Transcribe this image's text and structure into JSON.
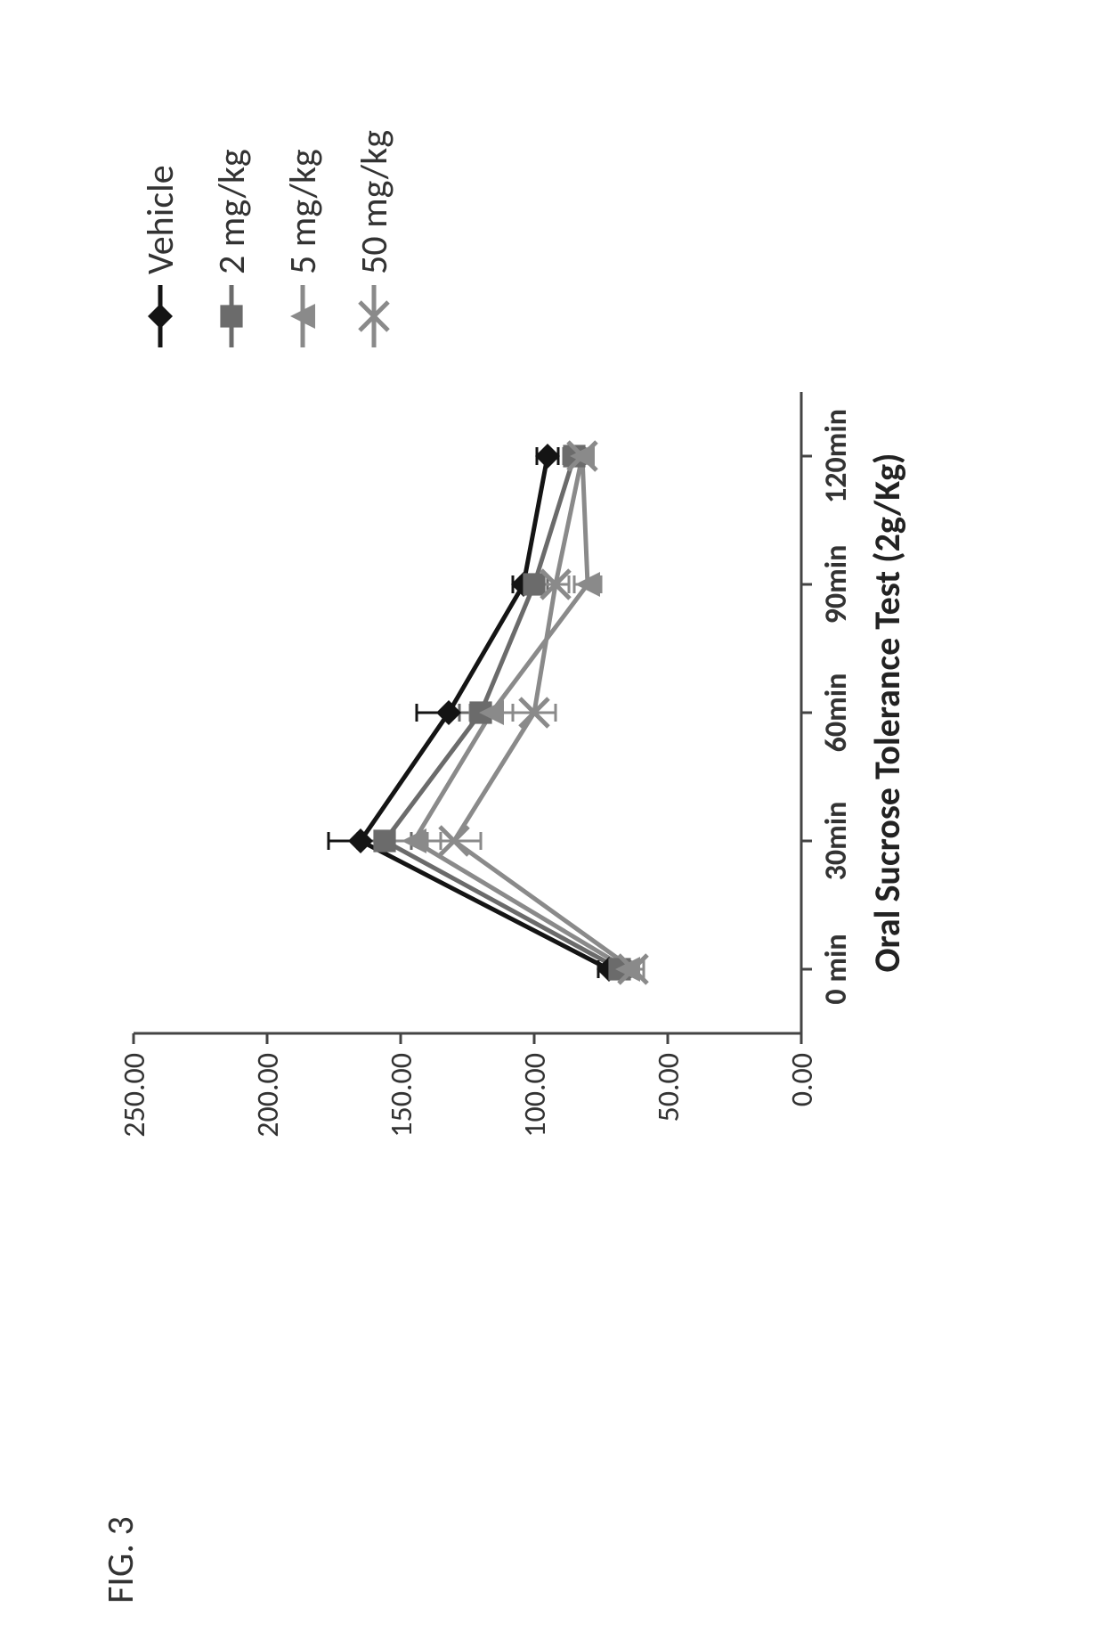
{
  "figure_label": "FIG. 3",
  "chart": {
    "type": "line",
    "x_axis": {
      "label": "Oral Sucrose Tolerance Test (2g/Kg)",
      "categories": [
        "0 min",
        "30min",
        "60min",
        "90min",
        "120min"
      ],
      "font_size": 34,
      "font_weight": "bold",
      "axis_font_size": 40
    },
    "y_axis": {
      "min": 0,
      "max": 250,
      "step": 50,
      "tick_labels": [
        "0.00",
        "50.00",
        "100.00",
        "150.00",
        "200.00",
        "250.00"
      ],
      "font_size": 34,
      "font_weight": "normal"
    },
    "series": [
      {
        "name": "Vehicle",
        "color": "#141414",
        "marker": "diamond",
        "line_width": 5,
        "marker_size": 14,
        "values": [
          72,
          165,
          132,
          104,
          95
        ],
        "errors": [
          4,
          12,
          12,
          4,
          4
        ]
      },
      {
        "name": "2 mg/kg",
        "color": "#6b6b6b",
        "marker": "square",
        "line_width": 5,
        "marker_size": 14,
        "values": [
          68,
          156,
          120,
          100,
          85
        ],
        "errors": [
          4,
          10,
          8,
          5,
          4
        ]
      },
      {
        "name": "5 mg/kg",
        "color": "#8a8a8a",
        "marker": "triangle",
        "line_width": 5,
        "marker_size": 14,
        "values": [
          65,
          145,
          116,
          80,
          82
        ],
        "errors": [
          4,
          10,
          8,
          5,
          4
        ]
      },
      {
        "name": "50 mg/kg",
        "color": "#8a8a8a",
        "marker": "x",
        "line_width": 5,
        "marker_size": 16,
        "values": [
          63,
          130,
          100,
          92,
          82
        ],
        "errors": [
          4,
          10,
          8,
          5,
          4
        ]
      }
    ],
    "legend": {
      "font_size": 42
    },
    "plot": {
      "inner_x": 190,
      "inner_y": 100,
      "inner_w": 720,
      "inner_h": 750,
      "axis_color": "#444444",
      "tick_len": 12,
      "error_cap": 10
    },
    "background_color": "#ffffff"
  }
}
